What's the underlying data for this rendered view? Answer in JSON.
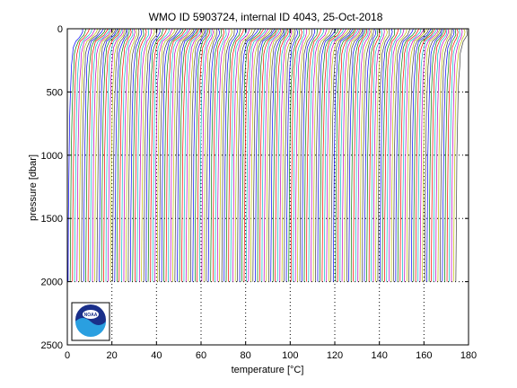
{
  "chart_data": {
    "type": "line",
    "title": "WMO ID 5903724, internal ID 4043, 25-Oct-2018",
    "xlabel": "temperature [°C]",
    "ylabel": "pressure [dbar]",
    "xlim": [
      0,
      180
    ],
    "ylim": [
      0,
      2500
    ],
    "y_reversed": true,
    "grid": "dotted, major ticks",
    "x_ticks": [
      "0",
      "20",
      "40",
      "60",
      "80",
      "100",
      "120",
      "140",
      "160",
      "180"
    ],
    "y_ticks": [
      "0",
      "500",
      "1000",
      "1500",
      "2000",
      "2500"
    ],
    "profile_description": "waterfall of temperature profiles, each offset about 1 °C to the right; warm near-surface layer, cooling sharply in the upper ~200 dbar and nearly vertical down to 2000 dbar",
    "profile_offset_step": 1.0,
    "profile_count": 175,
    "pressure_levels": [
      0,
      25,
      50,
      75,
      100,
      150,
      200,
      300,
      400,
      500,
      700,
      1000,
      1500,
      2000
    ],
    "representative_profile": [
      7.0,
      6.8,
      6.2,
      5.0,
      3.8,
      2.8,
      2.3,
      1.9,
      1.6,
      1.4,
      1.1,
      0.8,
      0.5,
      0.3
    ],
    "series_colors": [
      "#0000ff",
      "#008000",
      "#ff0000",
      "#00bfbf",
      "#bf00bf",
      "#bfbf00",
      "#404040"
    ],
    "logo": "noaa-logo"
  }
}
